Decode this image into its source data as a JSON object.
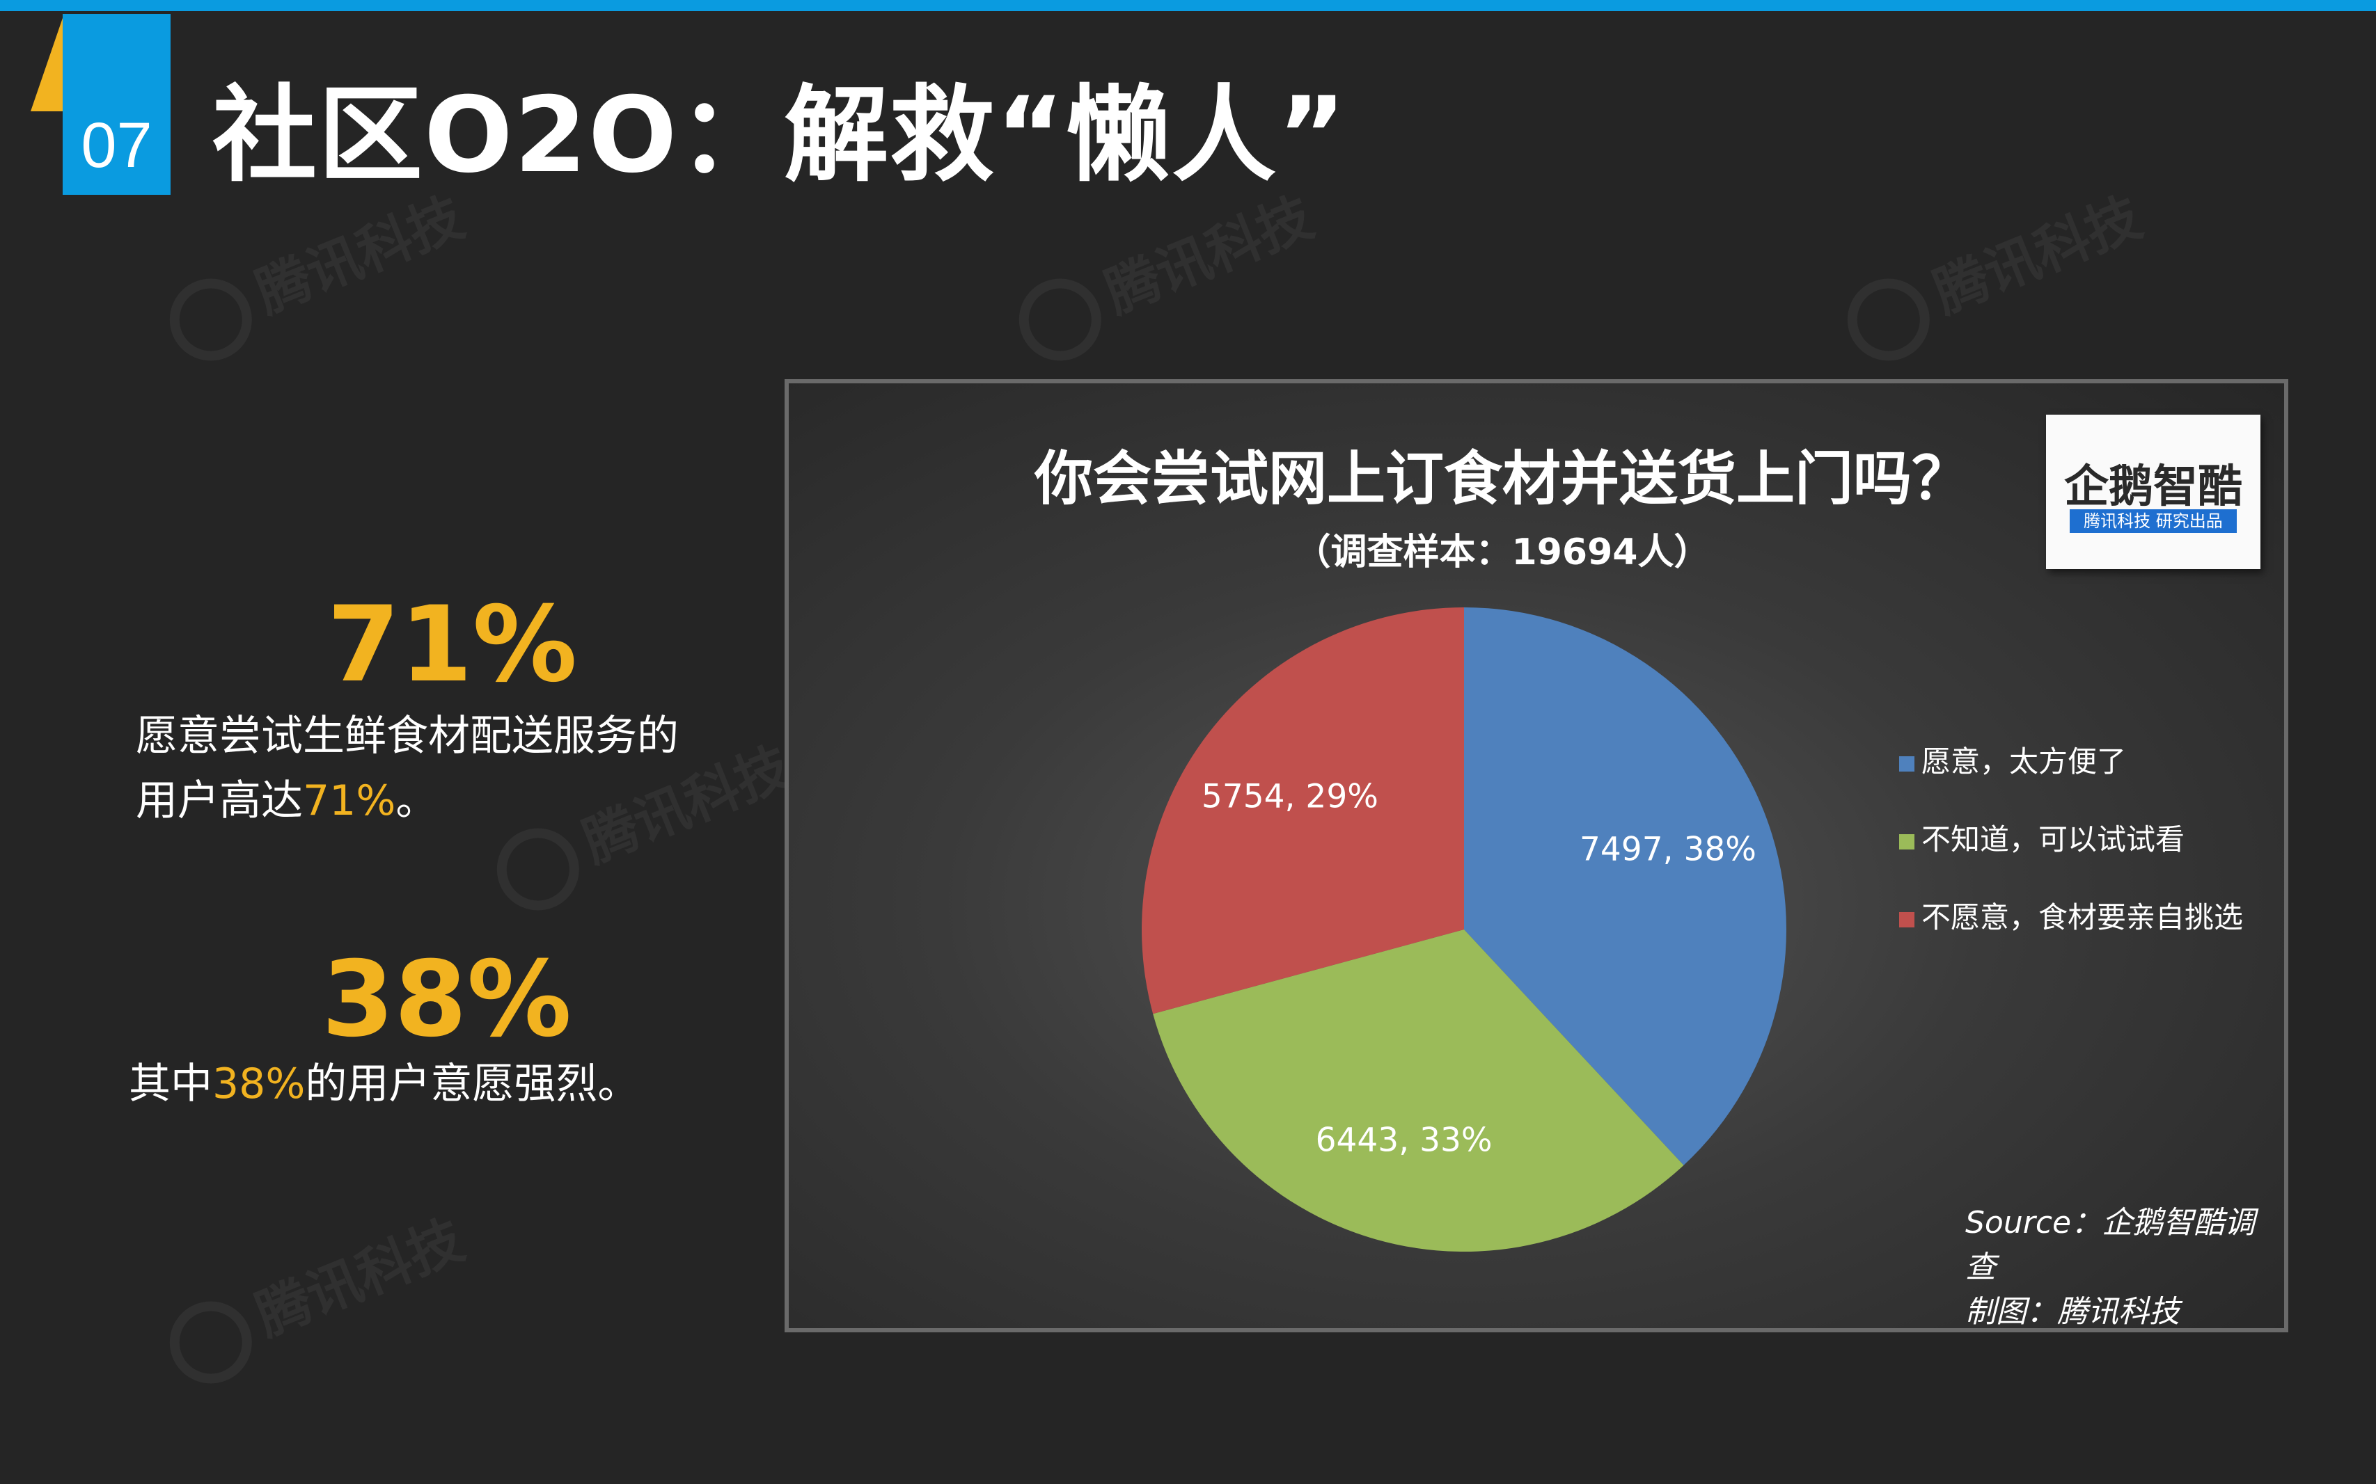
{
  "slide": {
    "number": "07",
    "title": "社区O2O：解救“懒人”"
  },
  "watermark": "腾讯科技",
  "stats": [
    {
      "big": "71%",
      "desc_pre": "愿意尝试生鲜食材配送服务的",
      "desc_line2_pre": "用户高达",
      "desc_hl": "71%",
      "desc_post": "。"
    },
    {
      "big": "38%",
      "desc_pre": "其中",
      "desc_hl": "38%",
      "desc_post": "的用户意愿强烈。"
    }
  ],
  "logo": {
    "name": "企鹅智酷",
    "sub": "腾讯科技 研究出品"
  },
  "source": {
    "line1": "Source：企鹅智酷调查",
    "line2": "制图：腾讯科技"
  },
  "colors": {
    "blue": "#4f81bd",
    "green": "#9bbb59",
    "red": "#c0504d",
    "accent": "#f2b320",
    "topbar": "#0a9be0"
  },
  "chart_data": {
    "type": "pie",
    "title": "你会尝试网上订食材并送货上门吗？",
    "subtitle": "（调查样本：19694人）",
    "legend_position": "right",
    "slices": [
      {
        "name": "愿意，太方便了",
        "value": 7497,
        "percent": 38,
        "label": "7497, 38%",
        "color": "#4f81bd"
      },
      {
        "name": "不知道，可以试试看",
        "value": 6443,
        "percent": 33,
        "label": "6443, 33%",
        "color": "#9bbb59"
      },
      {
        "name": "不愿意，食材要亲自挑选",
        "value": 5754,
        "percent": 29,
        "label": "5754, 29%",
        "color": "#c0504d"
      }
    ]
  }
}
